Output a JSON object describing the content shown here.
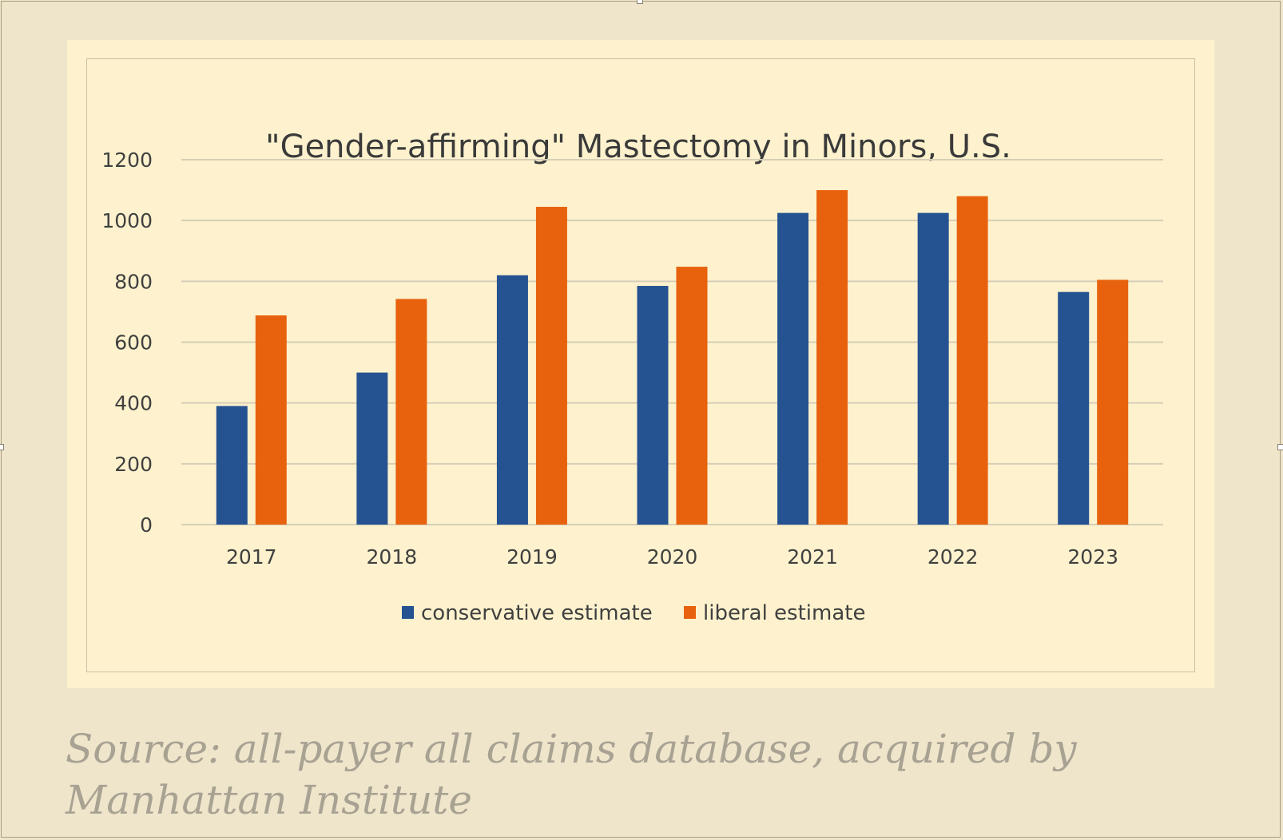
{
  "chart_data": {
    "type": "bar",
    "title": "\"Gender-affirming\" Mastectomy in Minors, U.S.",
    "categories": [
      "2017",
      "2018",
      "2019",
      "2020",
      "2021",
      "2022",
      "2023"
    ],
    "series": [
      {
        "name": "conservative estimate",
        "color": "#255291",
        "values": [
          390,
          500,
          820,
          785,
          1025,
          1025,
          765
        ]
      },
      {
        "name": "liberal estimate",
        "color": "#e8620e",
        "values": [
          688,
          742,
          1045,
          848,
          1100,
          1080,
          805
        ]
      }
    ],
    "yticks": [
      "0",
      "200",
      "400",
      "600",
      "800",
      "1000",
      "1200"
    ],
    "ylim": [
      0,
      1200
    ],
    "grid": true,
    "legend_position": "bottom",
    "xlabel": "",
    "ylabel": ""
  },
  "caption": {
    "source": "Source: all-payer all claims database, acquired by Manhattan Institute"
  }
}
